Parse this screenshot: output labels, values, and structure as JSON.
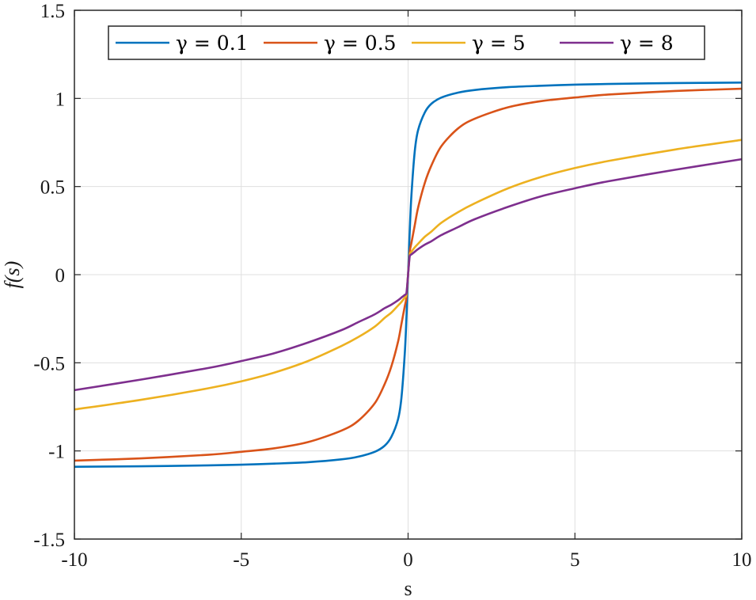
{
  "chart_data": {
    "type": "line",
    "title": "",
    "xlabel": "s",
    "ylabel": "f(s)",
    "xlim": [
      -10,
      10
    ],
    "ylim": [
      -1.5,
      1.5
    ],
    "grid": true,
    "legend_position": "top",
    "legend_orientation": "horizontal",
    "x_ticks": [
      -10,
      -5,
      0,
      5,
      10
    ],
    "x_tick_labels": [
      "-10",
      "-5",
      "0",
      "5",
      "10"
    ],
    "y_ticks": [
      -1.5,
      -1,
      -0.5,
      0,
      0.5,
      1,
      1.5
    ],
    "y_tick_labels": [
      "-1.5",
      "-1",
      "-0.5",
      "0",
      "0.5",
      "1",
      "1.5"
    ],
    "x": [
      -10,
      -8,
      -6,
      -5,
      -4,
      -3,
      -2,
      -1.5,
      -1,
      -0.7,
      -0.5,
      -0.3,
      -0.2,
      -0.1,
      -0.05,
      0,
      0.05,
      0.1,
      0.2,
      0.3,
      0.5,
      0.7,
      1,
      1.5,
      2,
      3,
      4,
      5,
      6,
      8,
      10
    ],
    "series": [
      {
        "name": "γ = 0.1",
        "color": "#0072bd",
        "values": [
          -1.09,
          -1.087,
          -1.082,
          -1.078,
          -1.072,
          -1.064,
          -1.048,
          -1.033,
          -1.005,
          -0.97,
          -0.92,
          -0.82,
          -0.7,
          -0.45,
          -0.25,
          0,
          0.25,
          0.45,
          0.7,
          0.82,
          0.92,
          0.97,
          1.005,
          1.033,
          1.048,
          1.064,
          1.072,
          1.078,
          1.082,
          1.087,
          1.09
        ]
      },
      {
        "name": "γ = 0.5",
        "color": "#d95319",
        "values": [
          -1.055,
          -1.042,
          -1.022,
          -1.005,
          -0.985,
          -0.95,
          -0.885,
          -0.83,
          -0.73,
          -0.62,
          -0.52,
          -0.38,
          -0.28,
          -0.18,
          -0.13,
          0,
          0.13,
          0.18,
          0.28,
          0.38,
          0.52,
          0.62,
          0.73,
          0.83,
          0.885,
          0.95,
          0.985,
          1.005,
          1.022,
          1.042,
          1.055
        ]
      },
      {
        "name": "γ = 5",
        "color": "#edb120",
        "values": [
          -0.765,
          -0.71,
          -0.645,
          -0.605,
          -0.555,
          -0.49,
          -0.405,
          -0.355,
          -0.295,
          -0.245,
          -0.215,
          -0.175,
          -0.155,
          -0.13,
          -0.115,
          0,
          0.115,
          0.13,
          0.155,
          0.175,
          0.215,
          0.245,
          0.295,
          0.355,
          0.405,
          0.49,
          0.555,
          0.605,
          0.645,
          0.71,
          0.765
        ]
      },
      {
        "name": "γ = 8",
        "color": "#7e2f8e",
        "values": [
          -0.655,
          -0.595,
          -0.53,
          -0.49,
          -0.445,
          -0.385,
          -0.315,
          -0.27,
          -0.225,
          -0.19,
          -0.17,
          -0.145,
          -0.13,
          -0.115,
          -0.105,
          0,
          0.105,
          0.115,
          0.13,
          0.145,
          0.17,
          0.19,
          0.225,
          0.27,
          0.315,
          0.385,
          0.445,
          0.49,
          0.53,
          0.595,
          0.655
        ]
      }
    ]
  }
}
